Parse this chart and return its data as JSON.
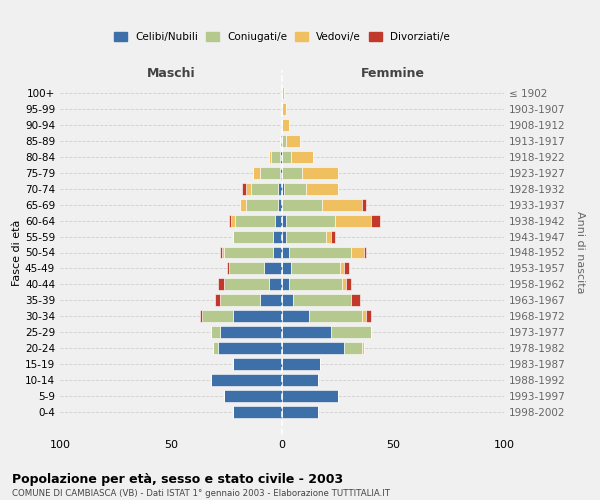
{
  "age_groups": [
    "0-4",
    "5-9",
    "10-14",
    "15-19",
    "20-24",
    "25-29",
    "30-34",
    "35-39",
    "40-44",
    "45-49",
    "50-54",
    "55-59",
    "60-64",
    "65-69",
    "70-74",
    "75-79",
    "80-84",
    "85-89",
    "90-94",
    "95-99",
    "100+"
  ],
  "birth_years": [
    "1998-2002",
    "1993-1997",
    "1988-1992",
    "1983-1987",
    "1978-1982",
    "1973-1977",
    "1968-1972",
    "1963-1967",
    "1958-1962",
    "1953-1957",
    "1948-1952",
    "1943-1947",
    "1938-1942",
    "1933-1937",
    "1928-1932",
    "1923-1927",
    "1918-1922",
    "1913-1917",
    "1908-1912",
    "1903-1907",
    "≤ 1902"
  ],
  "colors": {
    "celibe": "#3d6fa8",
    "coniugato": "#b5c98e",
    "vedovo": "#f0c060",
    "divorziato": "#c0392b"
  },
  "maschi": {
    "celibe": [
      22,
      26,
      32,
      22,
      29,
      28,
      22,
      10,
      6,
      8,
      4,
      4,
      3,
      2,
      2,
      1,
      1,
      0,
      0,
      0,
      0
    ],
    "coniugato": [
      0,
      0,
      0,
      0,
      2,
      4,
      14,
      18,
      20,
      16,
      22,
      18,
      18,
      14,
      12,
      9,
      4,
      1,
      0,
      0,
      0
    ],
    "vedovo": [
      0,
      0,
      0,
      0,
      0,
      0,
      0,
      0,
      0,
      0,
      1,
      0,
      2,
      3,
      2,
      3,
      1,
      0,
      0,
      0,
      0
    ],
    "divorziato": [
      0,
      0,
      0,
      0,
      0,
      0,
      1,
      2,
      3,
      1,
      1,
      0,
      1,
      0,
      2,
      0,
      0,
      0,
      0,
      0,
      0
    ]
  },
  "femmine": {
    "celibe": [
      16,
      25,
      16,
      17,
      28,
      22,
      12,
      5,
      3,
      4,
      3,
      2,
      2,
      0,
      1,
      0,
      0,
      0,
      0,
      0,
      0
    ],
    "coniugato": [
      0,
      0,
      0,
      0,
      8,
      18,
      24,
      26,
      24,
      22,
      28,
      18,
      22,
      18,
      10,
      9,
      4,
      2,
      0,
      0,
      0
    ],
    "vedovo": [
      0,
      0,
      0,
      0,
      1,
      0,
      2,
      0,
      2,
      2,
      6,
      2,
      16,
      18,
      14,
      16,
      10,
      6,
      3,
      2,
      1
    ],
    "divorziato": [
      0,
      0,
      0,
      0,
      0,
      0,
      2,
      4,
      2,
      2,
      1,
      2,
      4,
      2,
      0,
      0,
      0,
      0,
      0,
      0,
      0
    ]
  },
  "xlim": [
    -100,
    100
  ],
  "xticks": [
    -100,
    -50,
    0,
    50,
    100
  ],
  "xticklabels": [
    "100",
    "50",
    "0",
    "50",
    "100"
  ],
  "title": "Popolazione per età, sesso e stato civile - 2003",
  "subtitle": "COMUNE DI CAMBIASCA (VB) - Dati ISTAT 1° gennaio 2003 - Elaborazione TUTTITALIA.IT",
  "ylabel_left": "Fasce di età",
  "ylabel_right": "Anni di nascita",
  "label_maschi": "Maschi",
  "label_femmine": "Femmine",
  "legend_labels": [
    "Celibi/Nubili",
    "Coniugati/e",
    "Vedovi/e",
    "Divorziati/e"
  ],
  "background_color": "#f0f0f0",
  "plot_background": "#f0f0f0"
}
